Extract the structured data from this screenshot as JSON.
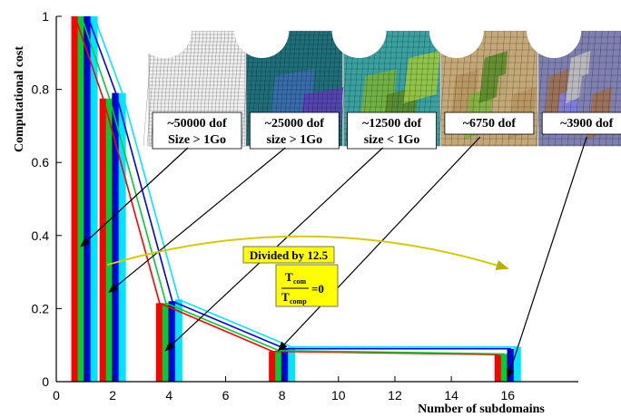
{
  "chart_data": {
    "type": "bar",
    "xlabel": "Number of subdomains",
    "ylabel": "Computational cost",
    "xlim": [
      0,
      18.5
    ],
    "ylim": [
      0,
      1.0
    ],
    "x_ticks": [
      0,
      2,
      4,
      6,
      8,
      10,
      12,
      14,
      16
    ],
    "y_ticks": [
      0,
      0.2,
      0.4,
      0.6,
      0.8,
      1
    ],
    "x": [
      1,
      2,
      4,
      8,
      16
    ],
    "series_colors": [
      "#ff0000",
      "#00cc33",
      "#0000ee",
      "#00e5ff"
    ],
    "series": [
      {
        "values": [
          1.0,
          0.775,
          0.215,
          0.083,
          0.074
        ]
      },
      {
        "values": [
          1.0,
          0.775,
          0.215,
          0.085,
          0.076
        ]
      },
      {
        "values": [
          1.0,
          0.79,
          0.22,
          0.09,
          0.09
        ]
      },
      {
        "values": [
          1.0,
          0.79,
          0.225,
          0.095,
          0.095
        ]
      }
    ],
    "insets": [
      {
        "line1": "~50000 dof",
        "line2": "Size > 1Go",
        "pointer": [
          1,
          0.37
        ],
        "palette": "mono"
      },
      {
        "line1": "~25000 dof",
        "line2": "size > 1Go",
        "pointer": [
          2,
          0.245
        ],
        "palette": "p2"
      },
      {
        "line1": "~12500 dof",
        "line2": "size < 1Go",
        "pointer": [
          4,
          0.085
        ],
        "palette": "p4"
      },
      {
        "line1": "~6750 dof",
        "line2": "",
        "pointer": [
          8,
          0.085
        ],
        "palette": "p8"
      },
      {
        "line1": "~3900 dof",
        "line2": "",
        "pointer": [
          16,
          0.01
        ],
        "palette": "p16"
      }
    ],
    "annotation": {
      "text": "Divided by 12.5",
      "ratio_num_main": "T",
      "ratio_num_sub": "com",
      "ratio_den_main": "T",
      "ratio_den_sub": "comp",
      "ratio_value": "=0",
      "arrow_from": [
        1,
        0.255
      ],
      "arrow_to": [
        16,
        0.255
      ]
    }
  }
}
